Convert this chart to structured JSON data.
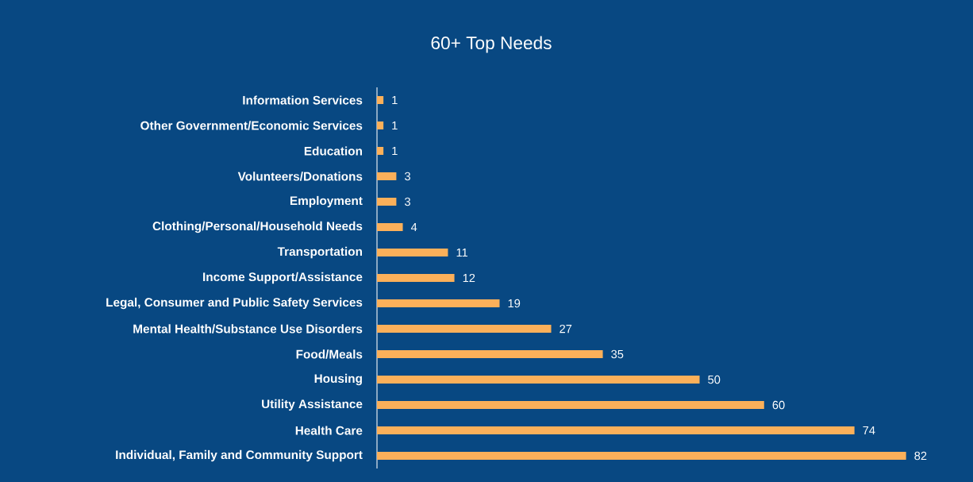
{
  "chart_data": {
    "type": "bar",
    "orientation": "horizontal",
    "title": "60+ Top Needs",
    "categories": [
      "Information Services",
      "Other Government/Economic Services",
      "Education",
      "Volunteers/Donations",
      "Employment",
      "Clothing/Personal/Household Needs",
      "Transportation",
      "Income Support/Assistance",
      "Legal, Consumer and Public Safety Services",
      "Mental Health/Substance Use Disorders",
      "Food/Meals",
      "Housing",
      "Utility Assistance",
      "Health Care",
      "Individual, Family and Community Support"
    ],
    "values": [
      1,
      1,
      1,
      3,
      3,
      4,
      11,
      12,
      19,
      27,
      35,
      50,
      60,
      74,
      82
    ],
    "color": "#fbb05a",
    "data_labels": true,
    "tick_labels": "y"
  }
}
